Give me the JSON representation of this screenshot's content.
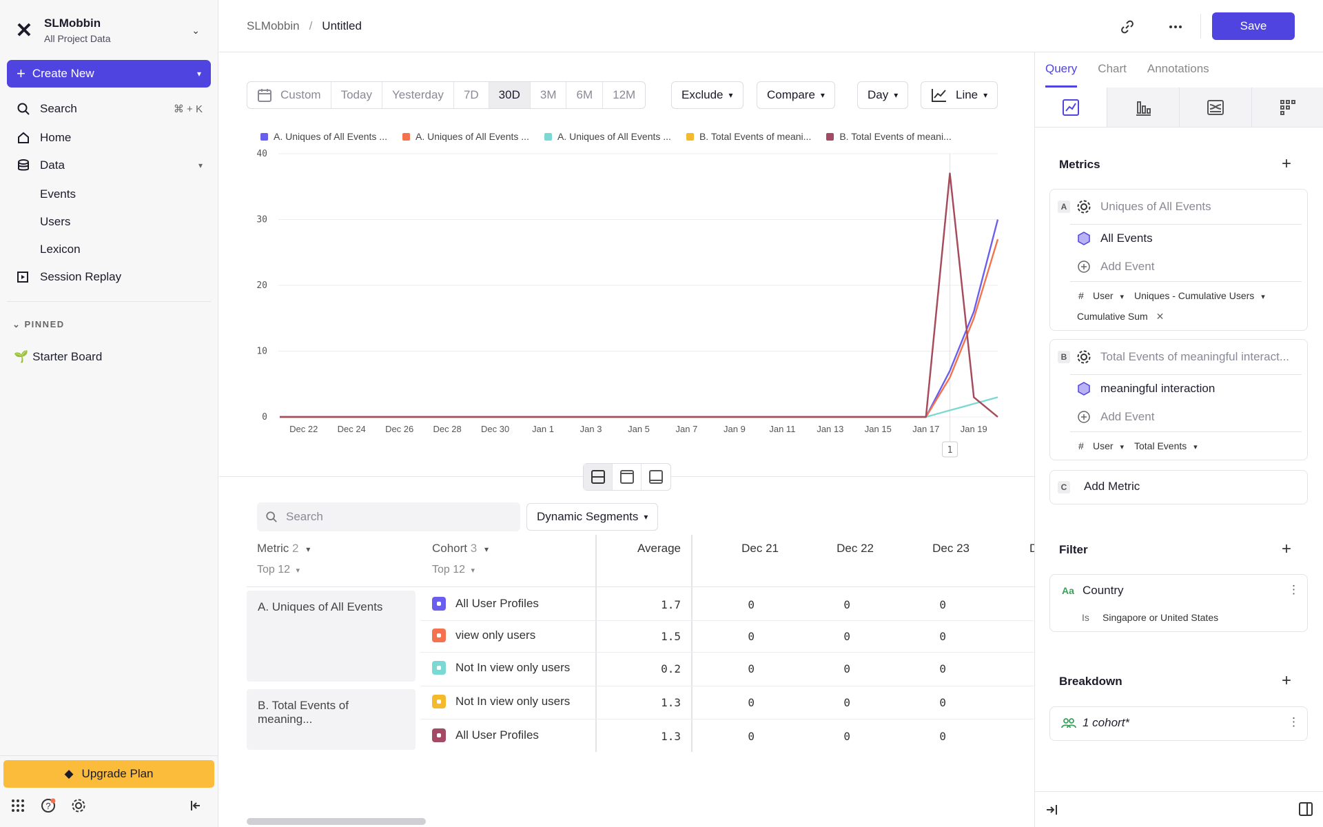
{
  "workspace": {
    "name": "SLMobbin",
    "subtitle": "All Project Data"
  },
  "sidebar": {
    "create_label": "Create New",
    "search_label": "Search",
    "search_shortcut": "⌘ + K",
    "home_label": "Home",
    "data_label": "Data",
    "data_items": [
      "Events",
      "Users",
      "Lexicon"
    ],
    "session_replay_label": "Session Replay",
    "pinned_label": "PINNED",
    "pinned_items": [
      "Starter Board"
    ],
    "upgrade_label": "Upgrade Plan"
  },
  "header": {
    "breadcrumb_root": "SLMobbin",
    "breadcrumb_sep": "/",
    "breadcrumb_current": "Untitled",
    "save_label": "Save"
  },
  "controls": {
    "date_ranges": [
      "Custom",
      "Today",
      "Yesterday",
      "7D",
      "30D",
      "3M",
      "6M",
      "12M"
    ],
    "active_range": "30D",
    "exclude_label": "Exclude",
    "compare_label": "Compare",
    "interval_label": "Day",
    "chart_type_label": "Line"
  },
  "chart_data": {
    "type": "line",
    "x": [
      "Dec 21",
      "Dec 22",
      "Dec 23",
      "Dec 24",
      "Dec 25",
      "Dec 26",
      "Dec 27",
      "Dec 28",
      "Dec 29",
      "Dec 30",
      "Dec 31",
      "Jan 1",
      "Jan 2",
      "Jan 3",
      "Jan 4",
      "Jan 5",
      "Jan 6",
      "Jan 7",
      "Jan 8",
      "Jan 9",
      "Jan 10",
      "Jan 11",
      "Jan 12",
      "Jan 13",
      "Jan 14",
      "Jan 15",
      "Jan 16",
      "Jan 17",
      "Jan 18",
      "Jan 19",
      "Jan 20"
    ],
    "x_tick_labels": [
      "Dec 22",
      "Dec 24",
      "Dec 26",
      "Dec 28",
      "Dec 30",
      "Jan 1",
      "Jan 3",
      "Jan 5",
      "Jan 7",
      "Jan 9",
      "Jan 11",
      "Jan 13",
      "Jan 15",
      "Jan 17",
      "Jan 19"
    ],
    "ylim": [
      0,
      40
    ],
    "y_ticks": [
      0,
      10,
      20,
      30,
      40
    ],
    "grid": true,
    "legend": "top",
    "annotation_marker": "1",
    "series": [
      {
        "name": "A. Uniques of All Events ...",
        "color": "#6a5ef0",
        "values": [
          0,
          0,
          0,
          0,
          0,
          0,
          0,
          0,
          0,
          0,
          0,
          0,
          0,
          0,
          0,
          0,
          0,
          0,
          0,
          0,
          0,
          0,
          0,
          0,
          0,
          0,
          0,
          0,
          7,
          16,
          30
        ]
      },
      {
        "name": "A. Uniques of All Events ...",
        "color": "#f4724e",
        "values": [
          0,
          0,
          0,
          0,
          0,
          0,
          0,
          0,
          0,
          0,
          0,
          0,
          0,
          0,
          0,
          0,
          0,
          0,
          0,
          0,
          0,
          0,
          0,
          0,
          0,
          0,
          0,
          0,
          6,
          15,
          27
        ]
      },
      {
        "name": "A. Uniques of All Events ...",
        "color": "#7ad9d2",
        "values": [
          0,
          0,
          0,
          0,
          0,
          0,
          0,
          0,
          0,
          0,
          0,
          0,
          0,
          0,
          0,
          0,
          0,
          0,
          0,
          0,
          0,
          0,
          0,
          0,
          0,
          0,
          0,
          0,
          1,
          2,
          3
        ]
      },
      {
        "name": "B. Total Events of meani...",
        "color": "#f5b92e",
        "values": [
          0,
          0,
          0,
          0,
          0,
          0,
          0,
          0,
          0,
          0,
          0,
          0,
          0,
          0,
          0,
          0,
          0,
          0,
          0,
          0,
          0,
          0,
          0,
          0,
          0,
          0,
          0,
          0,
          37,
          3,
          0
        ]
      },
      {
        "name": "B. Total Events of meani...",
        "color": "#a44a64",
        "values": [
          0,
          0,
          0,
          0,
          0,
          0,
          0,
          0,
          0,
          0,
          0,
          0,
          0,
          0,
          0,
          0,
          0,
          0,
          0,
          0,
          0,
          0,
          0,
          0,
          0,
          0,
          0,
          0,
          37,
          3,
          0
        ]
      }
    ]
  },
  "table": {
    "search_placeholder": "Search",
    "dynamic_segments_label": "Dynamic Segments",
    "metric_header": "Metric",
    "metric_count": "2",
    "cohort_header": "Cohort",
    "cohort_count": "3",
    "top_label": "Top 12",
    "average_header": "Average",
    "date_headers": [
      "Dec 21",
      "Dec 22",
      "Dec 23",
      "D"
    ],
    "metrics": [
      "A. Uniques of All Events",
      "B. Total Events of meaning..."
    ],
    "rows": [
      {
        "cohort": "All User Profiles",
        "color": "#6a5ef0",
        "average": "1.7",
        "values": [
          "0",
          "0",
          "0"
        ]
      },
      {
        "cohort": "view only users",
        "color": "#f4724e",
        "average": "1.5",
        "values": [
          "0",
          "0",
          "0"
        ]
      },
      {
        "cohort": "Not In view only users",
        "color": "#7ad9d2",
        "average": "0.2",
        "values": [
          "0",
          "0",
          "0"
        ]
      },
      {
        "cohort": "Not In view only users",
        "color": "#f5b92e",
        "average": "1.3",
        "values": [
          "0",
          "0",
          "0"
        ]
      },
      {
        "cohort": "All User Profiles",
        "color": "#a44a64",
        "average": "1.3",
        "values": [
          "0",
          "0",
          "0"
        ]
      }
    ]
  },
  "panel": {
    "tabs": [
      "Query",
      "Chart",
      "Annotations"
    ],
    "metrics_title": "Metrics",
    "metric_a": {
      "letter": "A",
      "title": "Uniques of All Events",
      "event": "All Events",
      "add_event": "Add Event",
      "hash": "#",
      "measure": "User",
      "aggregation": "Uniques - Cumulative Users",
      "modifier": "Cumulative Sum"
    },
    "metric_b": {
      "letter": "B",
      "title": "Total Events of meaningful interact...",
      "event": "meaningful interaction",
      "add_event": "Add Event",
      "hash": "#",
      "measure": "User",
      "aggregation": "Total Events"
    },
    "metric_c": {
      "letter": "C",
      "label": "Add Metric"
    },
    "filter_title": "Filter",
    "filter": {
      "type_glyph": "Aa",
      "property": "Country",
      "operator": "Is",
      "value": "Singapore or United States"
    },
    "breakdown_title": "Breakdown",
    "breakdown": {
      "label": "1 cohort*"
    }
  }
}
